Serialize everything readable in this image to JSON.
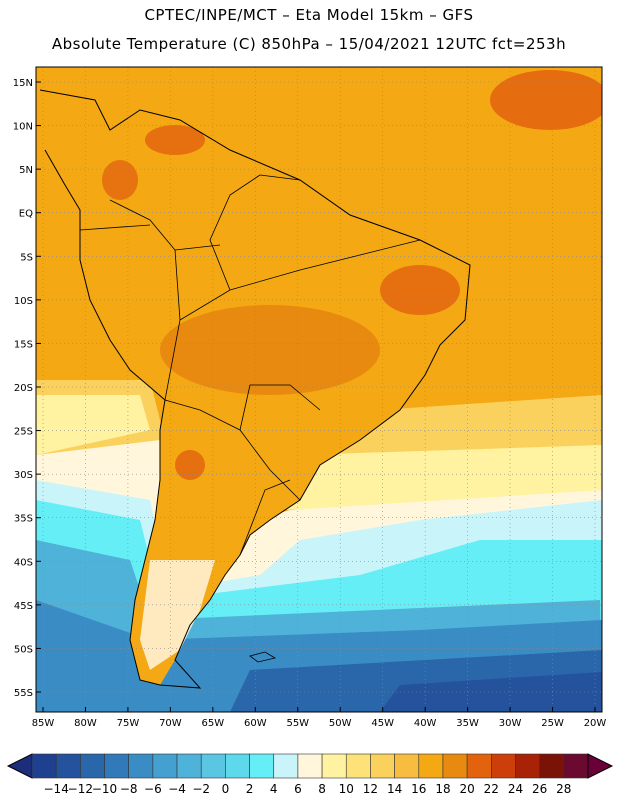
{
  "header": {
    "line1": "CPTEC/INPE/MCT –  Eta Model 15km – GFS",
    "line2": "Absolute Temperature (C) 850hPa – 15/04/2021 12UTC fct=253h"
  },
  "map": {
    "lat_labels": [
      "15N",
      "10N",
      "5N",
      "EQ",
      "5S",
      "10S",
      "15S",
      "20S",
      "25S",
      "30S",
      "35S",
      "40S",
      "45S",
      "50S",
      "55S"
    ],
    "lon_labels": [
      "85W",
      "80W",
      "75W",
      "70W",
      "65W",
      "60W",
      "55W",
      "50W",
      "45W",
      "40W",
      "35W",
      "30W",
      "25W",
      "20W"
    ],
    "lat_range": [
      15,
      -55
    ],
    "lon_range": [
      -85,
      -20
    ]
  },
  "colorbar": {
    "labels": [
      "-14",
      "-12",
      "-10",
      "-8",
      "-6",
      "-4",
      "-2",
      "0",
      "2",
      "4",
      "6",
      "8",
      "10",
      "12",
      "14",
      "16",
      "18",
      "20",
      "22",
      "24",
      "26",
      "28"
    ],
    "colors": [
      "#1f3f8f",
      "#24529c",
      "#2a66aa",
      "#3179b8",
      "#3a8cc4",
      "#44a0cf",
      "#4fb3d9",
      "#5ac6e2",
      "#5ed9ec",
      "#66eef6",
      "#c8f4fa",
      "#fff6dc",
      "#fff2a0",
      "#fde27a",
      "#fbd15e",
      "#f7bd40",
      "#f3a814",
      "#e88a10",
      "#e2620e",
      "#cc3e0a",
      "#a82208",
      "#7a1208",
      "#6a0a30"
    ],
    "low_color": "#1c2e7a",
    "high_color": "#6a0038"
  }
}
